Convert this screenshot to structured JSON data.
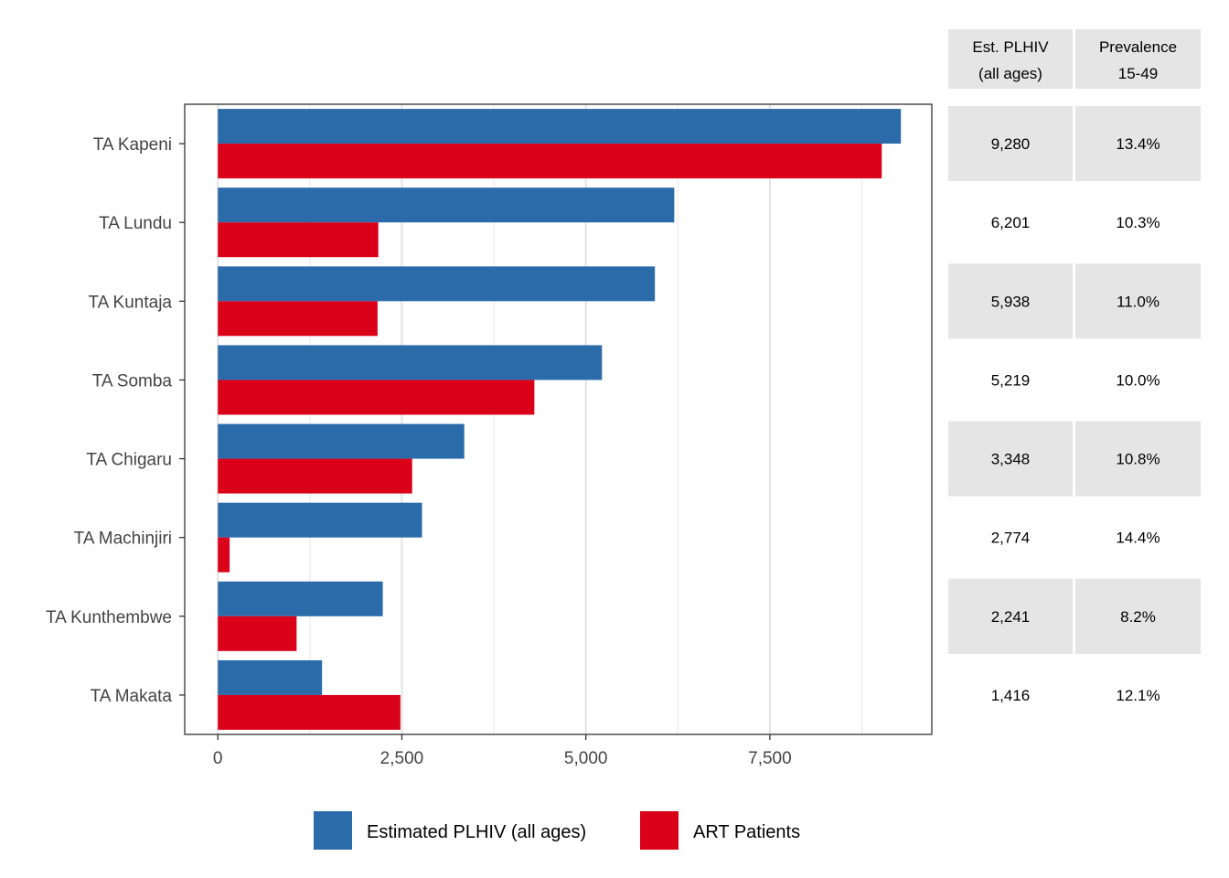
{
  "chart_data": {
    "type": "bar",
    "orientation": "horizontal",
    "categories": [
      "TA Kapeni",
      "TA Lundu",
      "TA Kuntaja",
      "TA Somba",
      "TA Chigaru",
      "TA Machinjiri",
      "TA Kunthembwe",
      "TA Makata"
    ],
    "series": [
      {
        "name": "Estimated PLHIV (all ages)",
        "color": "#2C6BAA",
        "values": [
          9280,
          6201,
          5938,
          5219,
          3348,
          2774,
          2241,
          1416
        ]
      },
      {
        "name": "ART Patients",
        "color": "#DA001A",
        "values": [
          9020,
          2180,
          2170,
          4300,
          2640,
          160,
          1070,
          2480
        ]
      }
    ],
    "xlim": [
      -450,
      9700
    ],
    "xticks": [
      0,
      2500,
      5000,
      7500
    ],
    "xtick_labels": [
      "0",
      "2,500",
      "5,000",
      "7,500"
    ],
    "title": "",
    "xlabel": "",
    "ylabel": "",
    "grid": true,
    "legend_position": "bottom"
  },
  "table": {
    "headers": [
      {
        "line1": "Est. PLHIV",
        "line2": "(all ages)"
      },
      {
        "line1": "Prevalence",
        "line2": "15-49"
      }
    ],
    "rows": [
      {
        "plhiv": "9,280",
        "prevalence": "13.4%"
      },
      {
        "plhiv": "6,201",
        "prevalence": "10.3%"
      },
      {
        "plhiv": "5,938",
        "prevalence": "11.0%"
      },
      {
        "plhiv": "5,219",
        "prevalence": "10.0%"
      },
      {
        "plhiv": "3,348",
        "prevalence": "10.8%"
      },
      {
        "plhiv": "2,774",
        "prevalence": "14.4%"
      },
      {
        "plhiv": "2,241",
        "prevalence": "8.2%"
      },
      {
        "plhiv": "1,416",
        "prevalence": "12.1%"
      }
    ],
    "shade_color": "#E5E5E5"
  }
}
